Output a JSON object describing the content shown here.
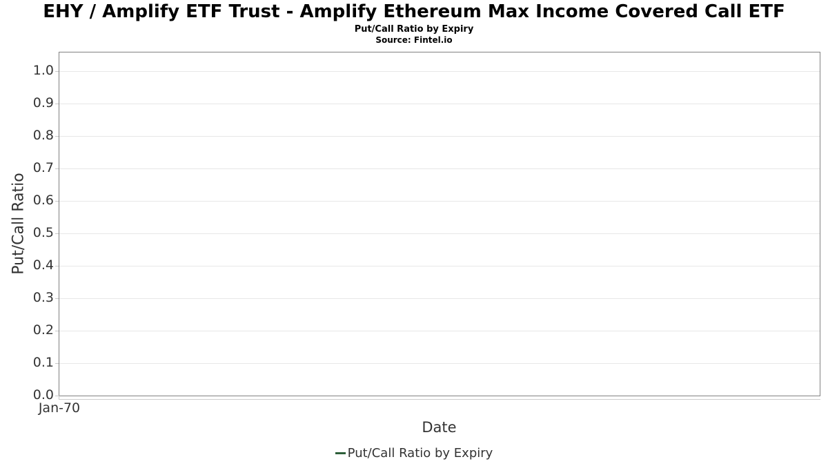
{
  "header": {
    "title": "EHY / Amplify ETF Trust - Amplify Ethereum Max Income Covered Call ETF",
    "subtitle": "Put/Call Ratio by Expiry",
    "source": "Source: Fintel.io"
  },
  "chart_data": {
    "type": "line",
    "title": "Put/Call Ratio by Expiry",
    "xlabel": "Date",
    "ylabel": "Put/Call Ratio",
    "x_tick_labels": [
      "Jan-70"
    ],
    "y_tick_labels": [
      "0.0",
      "0.1",
      "0.2",
      "0.3",
      "0.4",
      "0.5",
      "0.6",
      "0.7",
      "0.8",
      "0.9",
      "1.0"
    ],
    "ylim": [
      0,
      1.057
    ],
    "grid": true,
    "legend_position": "bottom",
    "series": [
      {
        "name": "Put/Call Ratio by Expiry",
        "color": "#2d5f3a",
        "x": [],
        "values": []
      }
    ]
  },
  "legend": {
    "items": [
      {
        "label": "Put/Call Ratio by Expiry",
        "color": "#2d5f3a"
      }
    ]
  },
  "colors": {
    "title_text": "#000000",
    "axis_text": "#333333",
    "plot_border": "#808080",
    "gridline": "#e7e7e7",
    "axis_line": "#cccccc",
    "series_green": "#2d5f3a",
    "background": "#ffffff"
  }
}
